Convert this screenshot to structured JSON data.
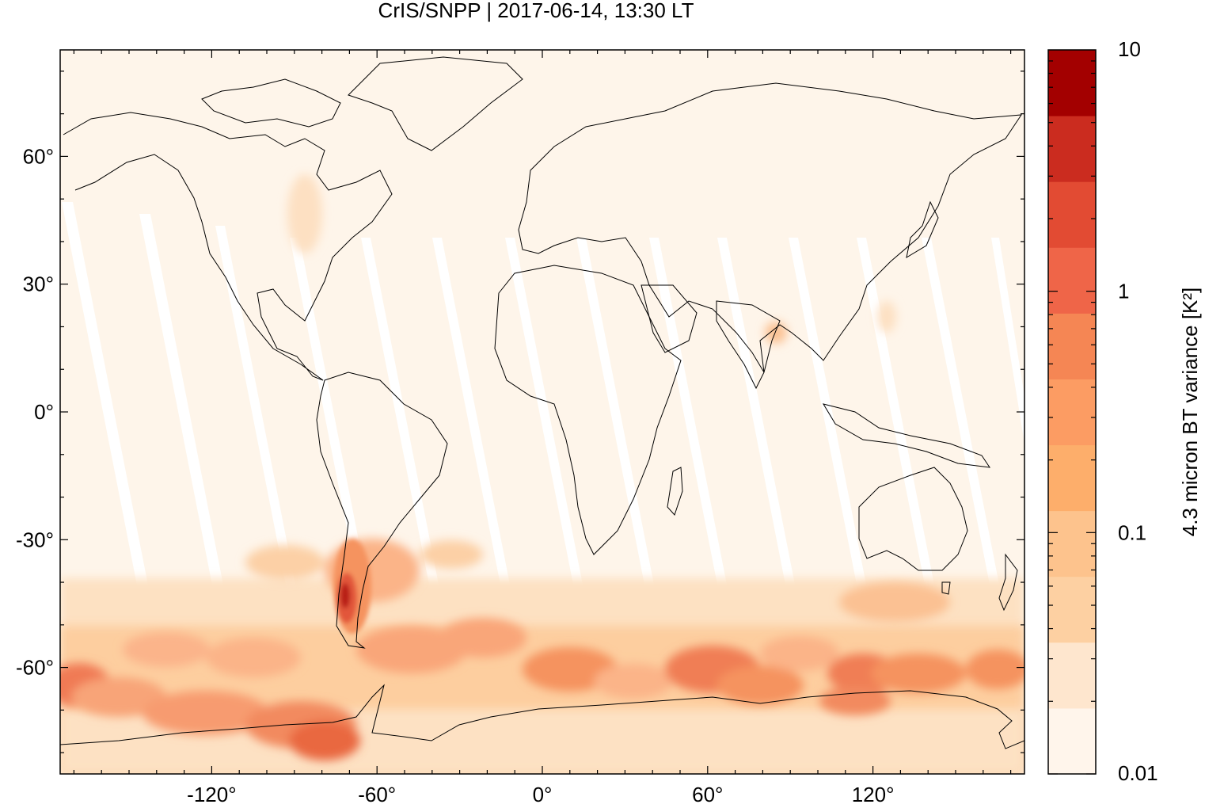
{
  "title": "CrIS/SNPP | 2017-06-14, 13:30 LT",
  "map": {
    "projection": "equirectangular",
    "lon_range": [
      -175,
      175
    ],
    "lat_range": [
      -85,
      85
    ],
    "x_ticks": [
      {
        "value": -120,
        "label": "-120°"
      },
      {
        "value": -60,
        "label": "-60°"
      },
      {
        "value": 0,
        "label": "0°"
      },
      {
        "value": 60,
        "label": "60°"
      },
      {
        "value": 120,
        "label": "120°"
      }
    ],
    "y_ticks": [
      {
        "value": 60,
        "label": "60°"
      },
      {
        "value": 30,
        "label": "30°"
      },
      {
        "value": 0,
        "label": "0°"
      },
      {
        "value": -30,
        "label": "-30°"
      },
      {
        "value": -60,
        "label": "-60°"
      }
    ],
    "background_color": "#fef5ea",
    "swath_gap_color": "#ffffff",
    "coastline_color": "#000000"
  },
  "colorbar": {
    "label": "4.3 micron BT variance [K²]",
    "scale": "log",
    "range": [
      0.01,
      10
    ],
    "tick_labels": [
      {
        "value": 10,
        "label": "10"
      },
      {
        "value": 1,
        "label": "1"
      },
      {
        "value": 0.1,
        "label": "0.1"
      },
      {
        "value": 0.01,
        "label": "0.01"
      }
    ],
    "colors": [
      "#fff5eb",
      "#fee6ce",
      "#fdd0a2",
      "#fdc38d",
      "#fdae6b",
      "#fc9c63",
      "#f58654",
      "#ef6548",
      "#e24b33",
      "#cb2c1f",
      "#a30000"
    ]
  }
}
